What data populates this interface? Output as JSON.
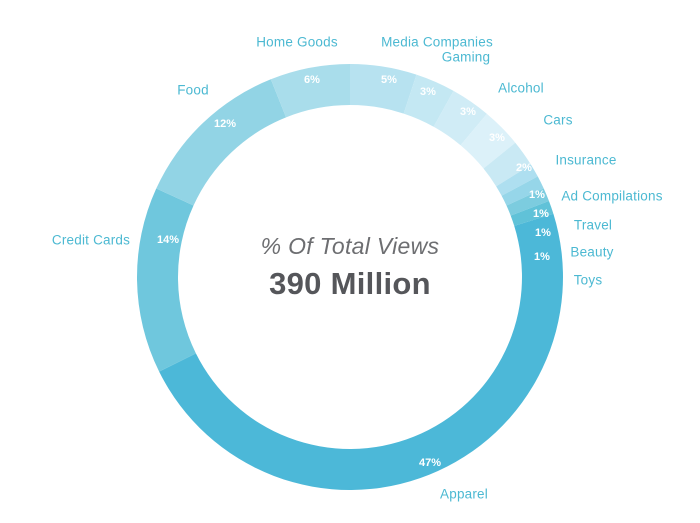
{
  "colors": {
    "background": "#ffffff",
    "category_label": "#4cb9d2",
    "percent_label": "#ffffff",
    "center_title": "#6d6e71",
    "center_value": "#55565a"
  },
  "chart_data": {
    "type": "pie",
    "subtype": "donut",
    "title": "% Of Total Views",
    "center_label": "390 Million",
    "direction": "clockwise",
    "start_angle_deg": 0,
    "legend_position": "outside-labels",
    "slices": [
      {
        "label": "Media Companies",
        "value": 5,
        "percent_label": "5%",
        "color": "#b7e2f0"
      },
      {
        "label": "Gaming",
        "value": 3,
        "percent_label": "3%",
        "color": "#c4e8f3"
      },
      {
        "label": "Alcohol",
        "value": 3,
        "percent_label": "3%",
        "color": "#d0ecf6"
      },
      {
        "label": "Cars",
        "value": 3,
        "percent_label": "3%",
        "color": "#dcf1f9"
      },
      {
        "label": "Insurance",
        "value": 2,
        "percent_label": "2%",
        "color": "#c9e9f4"
      },
      {
        "label": "Ad Compilations",
        "value": 1,
        "percent_label": "1%",
        "color": "#aedff0"
      },
      {
        "label": "Travel",
        "value": 1,
        "percent_label": "1%",
        "color": "#96d6e9"
      },
      {
        "label": "Beauty",
        "value": 1,
        "percent_label": "1%",
        "color": "#7cccdf"
      },
      {
        "label": "Toys",
        "value": 1,
        "percent_label": "1%",
        "color": "#60c2d8"
      },
      {
        "label": "Apparel",
        "value": 47,
        "percent_label": "47%",
        "color": "#4cb8d8"
      },
      {
        "label": "Credit Cards",
        "value": 14,
        "percent_label": "14%",
        "color": "#6fc7dd"
      },
      {
        "label": "Food",
        "value": 12,
        "percent_label": "12%",
        "color": "#92d4e5"
      },
      {
        "label": "Home Goods",
        "value": 6,
        "percent_label": "6%",
        "color": "#a9ddeb"
      }
    ]
  }
}
